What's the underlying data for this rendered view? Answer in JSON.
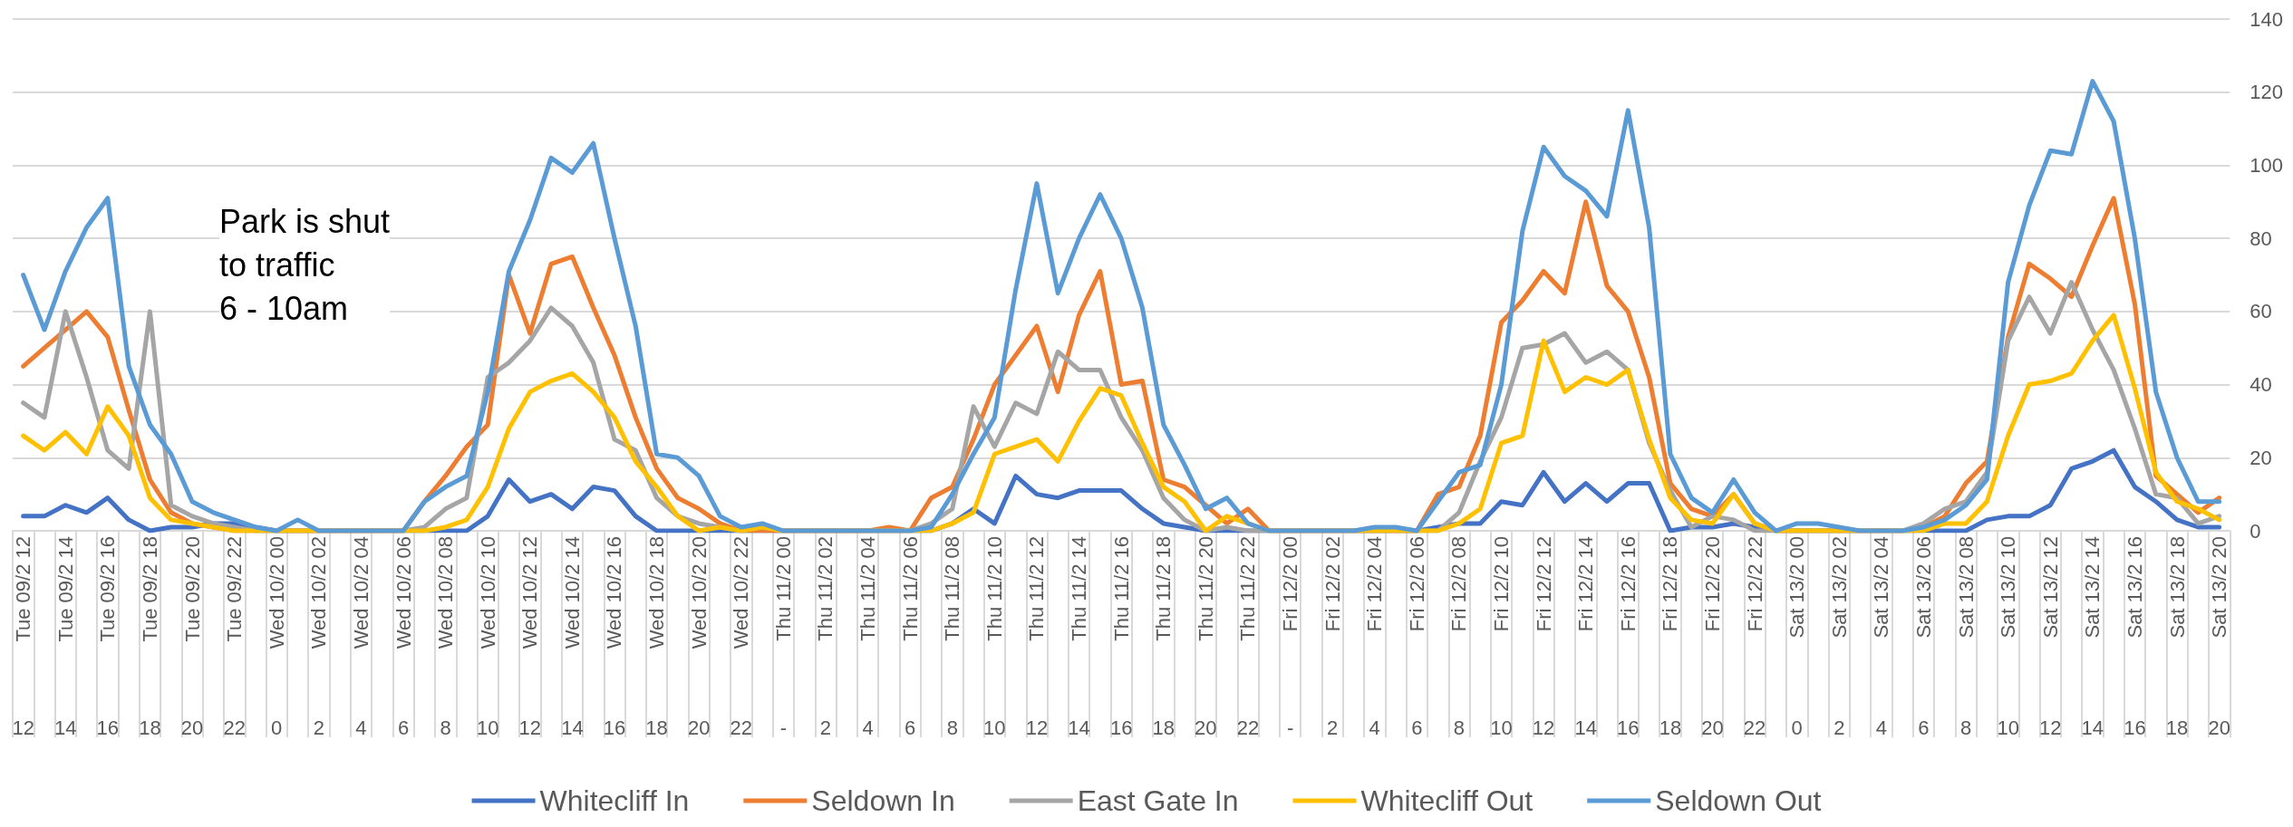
{
  "chart_data": {
    "type": "line",
    "categories": [
      "Tue 09/2 12\n12",
      null,
      "Tue 09/2 14\n14",
      null,
      "Tue 09/2 16\n16",
      null,
      "Tue 09/2 18\n18",
      null,
      "Tue 09/2 20\n20",
      null,
      "Tue 09/2 22\n22",
      null,
      "Wed 10/2 00\n0",
      null,
      "Wed 10/2 02\n2",
      null,
      "Wed 10/2 04\n4",
      null,
      "Wed 10/2 06\n6",
      null,
      "Wed 10/2 08\n8",
      null,
      "Wed 10/2 10\n10",
      null,
      "Wed 10/2 12\n12",
      null,
      "Wed 10/2 14\n14",
      null,
      "Wed 10/2 16\n16",
      null,
      "Wed 10/2 18\n18",
      null,
      "Wed 10/2 20\n20",
      null,
      "Wed 10/2 22\n22",
      null,
      "Thu 11/2 00\n-",
      null,
      "Thu 11/2 02\n2",
      null,
      "Thu 11/2 04\n4",
      null,
      "Thu 11/2 06\n6",
      null,
      "Thu 11/2 08\n8",
      null,
      "Thu 11/2 10\n10",
      null,
      "Thu 11/2 12\n12",
      null,
      "Thu 11/2 14\n14",
      null,
      "Thu 11/2 16\n16",
      null,
      "Thu 11/2 18\n18",
      null,
      "Thu 11/2 20\n20",
      null,
      "Thu 11/2 22\n22",
      null,
      "Fri 12/2 00\n-",
      null,
      "Fri 12/2 02\n2",
      null,
      "Fri 12/2 04\n4",
      null,
      "Fri 12/2 06\n6",
      null,
      "Fri 12/2 08\n8",
      null,
      "Fri 12/2 10\n10",
      null,
      "Fri 12/2 12\n12",
      null,
      "Fri 12/2 14\n14",
      null,
      "Fri 12/2 16\n16",
      null,
      "Fri 12/2 18\n18",
      null,
      "Fri 12/2 20\n20",
      null,
      "Fri 12/2 22\n22",
      null,
      "Sat 13/2 00\n0",
      null,
      "Sat 13/2 02\n2",
      null,
      "Sat 13/2 04\n4",
      null,
      "Sat 13/2 06\n6",
      null,
      "Sat 13/2 08\n8",
      null,
      "Sat 13/2 10\n10",
      null,
      "Sat 13/2 12\n12",
      null,
      "Sat 13/2 14\n14",
      null,
      "Sat 13/2 16\n16",
      null,
      "Sat 13/2 18\n18",
      null,
      "Sat 13/2 20\n20"
    ],
    "series": [
      {
        "name": "Whitecliff In",
        "color": "#4472c4",
        "values": [
          4,
          4,
          7,
          5,
          9,
          3,
          0,
          1,
          1,
          2,
          2,
          1,
          0,
          0,
          0,
          0,
          0,
          0,
          0,
          0,
          0,
          0,
          4,
          14,
          8,
          10,
          6,
          12,
          11,
          4,
          0,
          0,
          0,
          0,
          0,
          0,
          0,
          0,
          0,
          0,
          0,
          0,
          0,
          0,
          2,
          6,
          2,
          15,
          10,
          9,
          11,
          11,
          11,
          6,
          2,
          1,
          0,
          0,
          0,
          0,
          0,
          0,
          0,
          0,
          0,
          0,
          0,
          1,
          2,
          2,
          8,
          7,
          16,
          8,
          13,
          8,
          13,
          13,
          0,
          1,
          1,
          2,
          1,
          0,
          0,
          0,
          0,
          0,
          0,
          0,
          0,
          0,
          0,
          3,
          4,
          4,
          7,
          17,
          19,
          22,
          12,
          8,
          3,
          1,
          1
        ]
      },
      {
        "name": "Seldown In",
        "color": "#ed7d31",
        "values": [
          45,
          50,
          55,
          60,
          53,
          33,
          14,
          5,
          2,
          1,
          0,
          0,
          0,
          0,
          0,
          0,
          0,
          0,
          0,
          8,
          15,
          23,
          29,
          70,
          54,
          73,
          75,
          61,
          48,
          31,
          17,
          9,
          6,
          2,
          0,
          0,
          0,
          0,
          0,
          0,
          0,
          1,
          0,
          9,
          12,
          25,
          40,
          48,
          56,
          38,
          59,
          71,
          40,
          41,
          14,
          12,
          7,
          2,
          6,
          0,
          0,
          0,
          0,
          0,
          0,
          0,
          0,
          10,
          12,
          26,
          57,
          63,
          71,
          65,
          90,
          67,
          60,
          42,
          13,
          6,
          4,
          10,
          2,
          0,
          0,
          0,
          0,
          0,
          0,
          0,
          1,
          4,
          13,
          19,
          53,
          73,
          69,
          64,
          78,
          91,
          62,
          15,
          10,
          5,
          9
        ]
      },
      {
        "name": "East Gate In",
        "color": "#a5a5a5",
        "values": [
          35,
          31,
          60,
          42,
          22,
          17,
          60,
          7,
          4,
          2,
          1,
          0,
          0,
          0,
          0,
          0,
          0,
          0,
          0,
          1,
          6,
          9,
          42,
          46,
          52,
          61,
          56,
          46,
          25,
          22,
          9,
          4,
          2,
          1,
          0,
          1,
          0,
          0,
          0,
          0,
          0,
          0,
          0,
          2,
          6,
          34,
          23,
          35,
          32,
          49,
          44,
          44,
          31,
          22,
          9,
          3,
          0,
          1,
          0,
          0,
          0,
          0,
          0,
          0,
          0,
          0,
          0,
          0,
          5,
          19,
          31,
          50,
          51,
          54,
          46,
          49,
          44,
          24,
          11,
          1,
          4,
          3,
          0,
          0,
          0,
          0,
          0,
          0,
          0,
          0,
          2,
          6,
          8,
          16,
          52,
          64,
          54,
          68,
          55,
          44,
          28,
          10,
          9,
          2,
          4
        ]
      },
      {
        "name": "Whitecliff Out",
        "color": "#ffc000",
        "values": [
          26,
          22,
          27,
          21,
          34,
          26,
          9,
          3,
          2,
          1,
          0,
          0,
          0,
          0,
          0,
          0,
          0,
          0,
          0,
          0,
          1,
          3,
          12,
          28,
          38,
          41,
          43,
          38,
          31,
          19,
          12,
          4,
          0,
          1,
          0,
          1,
          0,
          0,
          0,
          0,
          0,
          0,
          0,
          0,
          2,
          5,
          21,
          23,
          25,
          19,
          30,
          39,
          37,
          24,
          12,
          8,
          0,
          4,
          2,
          0,
          0,
          0,
          0,
          0,
          0,
          0,
          0,
          0,
          2,
          6,
          24,
          26,
          52,
          38,
          42,
          40,
          44,
          25,
          9,
          3,
          2,
          10,
          2,
          0,
          0,
          0,
          0,
          0,
          0,
          0,
          0,
          2,
          2,
          8,
          26,
          40,
          41,
          43,
          52,
          59,
          39,
          16,
          8,
          6,
          3
        ]
      },
      {
        "name": "Seldown Out",
        "color": "#5b9bd5",
        "values": [
          70,
          55,
          71,
          83,
          91,
          45,
          29,
          21,
          8,
          5,
          3,
          1,
          0,
          3,
          0,
          0,
          0,
          0,
          0,
          8,
          12,
          15,
          38,
          71,
          85,
          102,
          98,
          106,
          80,
          56,
          21,
          20,
          15,
          4,
          1,
          2,
          0,
          0,
          0,
          0,
          0,
          0,
          0,
          1,
          10,
          21,
          31,
          66,
          95,
          65,
          80,
          92,
          80,
          61,
          29,
          18,
          6,
          9,
          2,
          0,
          0,
          0,
          0,
          0,
          1,
          1,
          0,
          8,
          16,
          18,
          40,
          82,
          105,
          97,
          93,
          86,
          115,
          83,
          21,
          9,
          5,
          14,
          5,
          0,
          2,
          2,
          1,
          0,
          0,
          0,
          1,
          3,
          7,
          14,
          68,
          89,
          104,
          103,
          123,
          112,
          80,
          38,
          20,
          8,
          8
        ]
      }
    ],
    "ylim": [
      0,
      140
    ],
    "yticks": [
      0,
      20,
      40,
      60,
      80,
      100,
      120,
      140
    ],
    "grid": "y",
    "legend": "bottom",
    "marker": "none",
    "line_style": "solid",
    "annotations": [
      "Park is shut\nto traffic\n6 - 10am"
    ]
  }
}
